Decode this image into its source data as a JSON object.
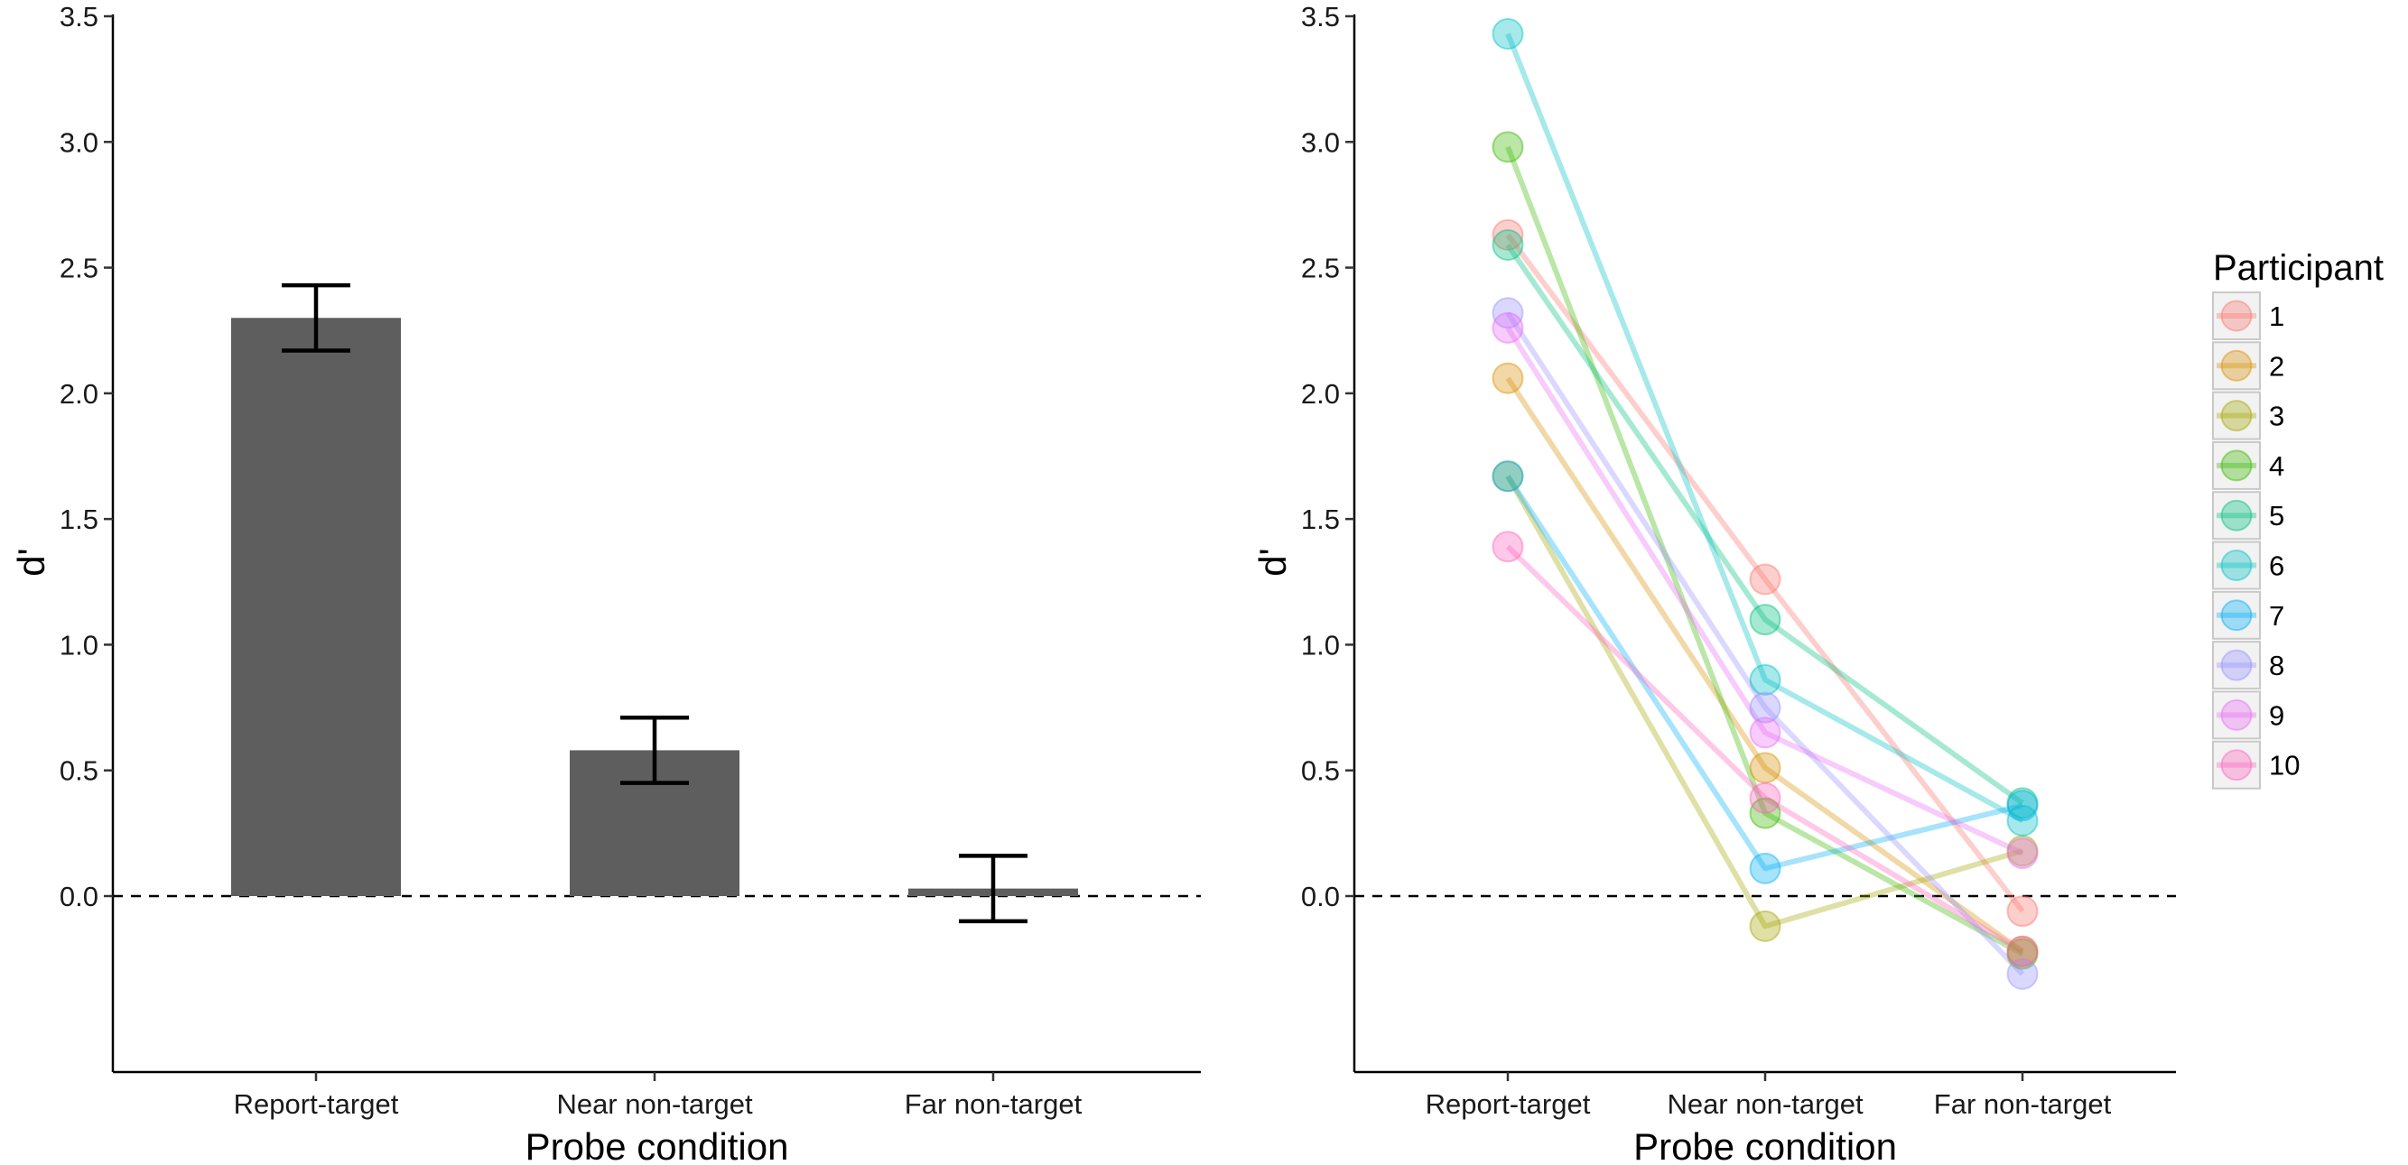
{
  "chart_data": [
    {
      "type": "bar",
      "title": "",
      "xlabel": "Probe condition",
      "ylabel": "d'",
      "categories": [
        "Report-target",
        "Near non-target",
        "Far non-target"
      ],
      "values": [
        2.3,
        0.58,
        0.03
      ],
      "error_low": [
        2.17,
        0.45,
        -0.1
      ],
      "error_high": [
        2.43,
        0.71,
        0.16
      ],
      "ylim": [
        -0.7,
        3.5
      ],
      "yticks": [
        "0.0",
        "0.5",
        "1.0",
        "1.5",
        "2.0",
        "2.5",
        "3.0",
        "3.5"
      ],
      "reference_line": 0,
      "grid": false,
      "bar_color": "#5e5e5e"
    },
    {
      "type": "line",
      "title": "",
      "xlabel": "Probe condition",
      "ylabel": "d'",
      "categories": [
        "Report-target",
        "Near non-target",
        "Far non-target"
      ],
      "ylim": [
        -0.7,
        3.5
      ],
      "yticks": [
        "0.0",
        "0.5",
        "1.0",
        "1.5",
        "2.0",
        "2.5",
        "3.0",
        "3.5"
      ],
      "reference_line": 0,
      "grid": false,
      "legend_title": "Participant",
      "legend_position": "right",
      "series": [
        {
          "name": "1",
          "color": "#F8766D",
          "values": [
            2.63,
            1.26,
            -0.06
          ]
        },
        {
          "name": "2",
          "color": "#D89000",
          "values": [
            2.06,
            0.51,
            -0.22
          ]
        },
        {
          "name": "3",
          "color": "#A3A500",
          "values": [
            1.67,
            -0.12,
            0.18
          ]
        },
        {
          "name": "4",
          "color": "#39B600",
          "values": [
            2.98,
            0.33,
            -0.23
          ]
        },
        {
          "name": "5",
          "color": "#00BF7D",
          "values": [
            2.59,
            1.1,
            0.37
          ]
        },
        {
          "name": "6",
          "color": "#00BFC4",
          "values": [
            3.43,
            0.86,
            0.3
          ]
        },
        {
          "name": "7",
          "color": "#00B0F6",
          "values": [
            1.67,
            0.11,
            0.36
          ]
        },
        {
          "name": "8",
          "color": "#9590FF",
          "values": [
            2.32,
            0.75,
            -0.31
          ]
        },
        {
          "name": "9",
          "color": "#E76BF3",
          "values": [
            2.26,
            0.65,
            0.17
          ]
        },
        {
          "name": "10",
          "color": "#FF62BC",
          "values": [
            1.39,
            0.39,
            -0.22
          ]
        }
      ]
    }
  ]
}
